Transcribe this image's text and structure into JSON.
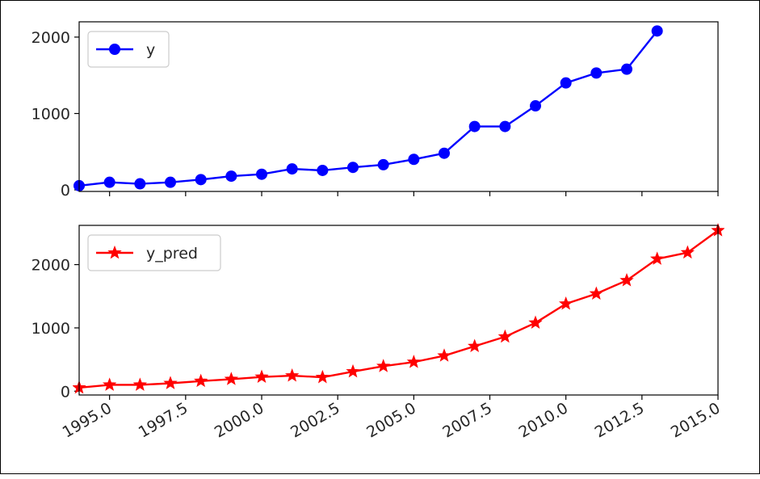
{
  "chart_data": [
    {
      "type": "line",
      "x": [
        1994,
        1995,
        1996,
        1997,
        1998,
        1999,
        2000,
        2001,
        2002,
        2003,
        2004,
        2005,
        2006,
        2007,
        2008,
        2009,
        2010,
        2011,
        2012,
        2013
      ],
      "series": [
        {
          "name": "y",
          "color": "#0000ff",
          "marker": "circle",
          "values": [
            55,
            100,
            80,
            100,
            135,
            180,
            205,
            275,
            255,
            295,
            330,
            400,
            480,
            830,
            830,
            1100,
            1400,
            1530,
            1580,
            2080
          ]
        }
      ],
      "xlim": [
        1994,
        2015
      ],
      "ylim": [
        -20,
        2200
      ],
      "yticks": [
        0,
        1000,
        2000
      ],
      "ytick_labels": [
        "0",
        "1000",
        "2000"
      ],
      "legend": "top-left",
      "grid": false
    },
    {
      "type": "line",
      "x": [
        1994,
        1995,
        1996,
        1997,
        1998,
        1999,
        2000,
        2001,
        2002,
        2003,
        2004,
        2005,
        2006,
        2007,
        2008,
        2009,
        2010,
        2011,
        2012,
        2013,
        2014,
        2015
      ],
      "series": [
        {
          "name": "y_pred",
          "color": "#ff0000",
          "marker": "star",
          "values": [
            55,
            100,
            100,
            125,
            160,
            190,
            225,
            245,
            220,
            310,
            395,
            460,
            560,
            710,
            860,
            1080,
            1380,
            1540,
            1750,
            2090,
            2190,
            2540
          ]
        }
      ],
      "xlim": [
        1994,
        2015
      ],
      "ylim": [
        -60,
        2620
      ],
      "yticks": [
        0,
        1000,
        2000
      ],
      "ytick_labels": [
        "0",
        "1000",
        "2000"
      ],
      "xticks": [
        1995,
        1997.5,
        2000,
        2002.5,
        2005,
        2007.5,
        2010,
        2012.5,
        2015
      ],
      "xtick_labels": [
        "1995.0",
        "1997.5",
        "2000.0",
        "2002.5",
        "2005.0",
        "2007.5",
        "2010.0",
        "2012.5",
        "2015.0"
      ],
      "legend": "top-left",
      "grid": false
    }
  ]
}
